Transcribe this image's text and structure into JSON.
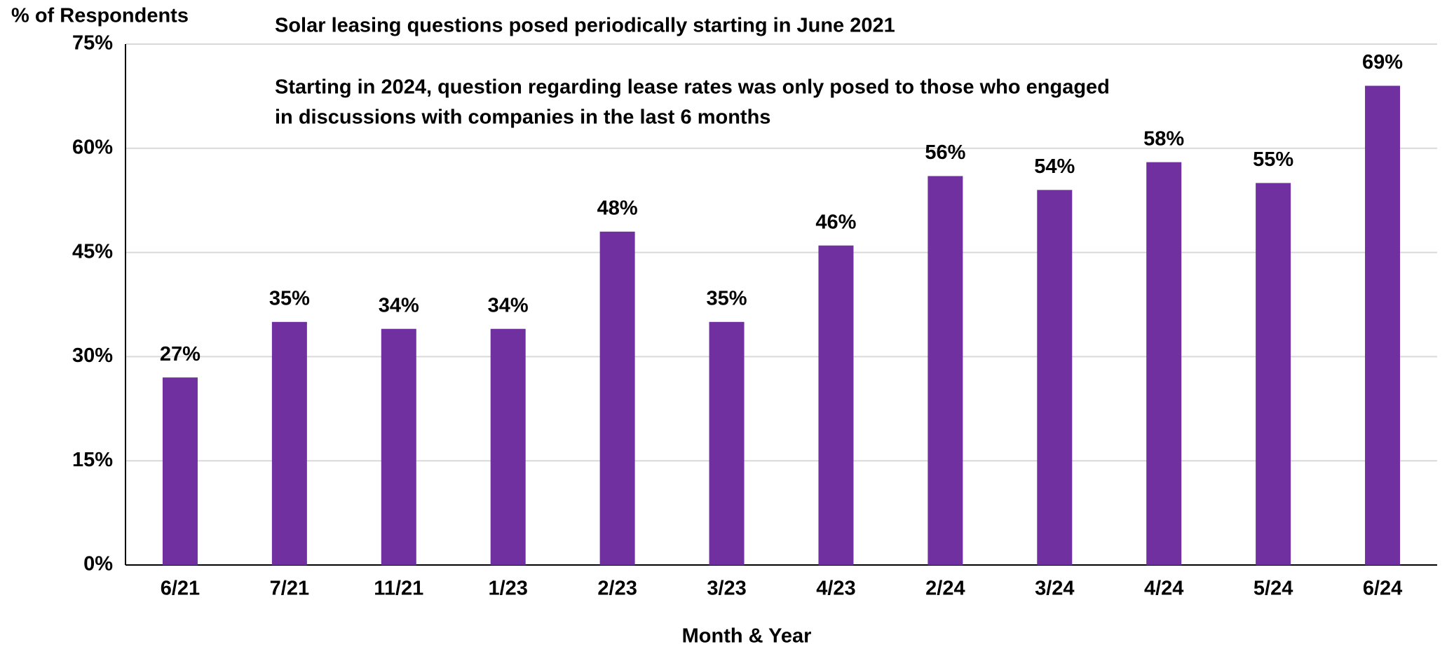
{
  "chart_data": {
    "type": "bar",
    "y_axis_label": "% of Respondents",
    "x_axis_label": "Month & Year",
    "annotations": [
      "Solar leasing questions posed periodically starting in June 2021",
      "Starting in 2024, question regarding lease rates was only posed to those who engaged",
      "in discussions with companies in the last 6 months"
    ],
    "categories": [
      "6/21",
      "7/21",
      "11/21",
      "1/23",
      "2/23",
      "3/23",
      "4/23",
      "2/24",
      "3/24",
      "4/24",
      "5/24",
      "6/24"
    ],
    "values": [
      27,
      35,
      34,
      34,
      48,
      35,
      46,
      56,
      54,
      58,
      55,
      69
    ],
    "value_labels": [
      "27%",
      "35%",
      "34%",
      "34%",
      "48%",
      "35%",
      "46%",
      "56%",
      "54%",
      "58%",
      "55%",
      "69%"
    ],
    "color": "#7030a0",
    "ylim": [
      0,
      75
    ],
    "yticks": [
      {
        "value": 0,
        "label": "0%"
      },
      {
        "value": 15,
        "label": "15%"
      },
      {
        "value": 30,
        "label": "30%"
      },
      {
        "value": 45,
        "label": "45%"
      },
      {
        "value": 60,
        "label": "60%"
      },
      {
        "value": 75,
        "label": "75%"
      }
    ],
    "grid": true
  }
}
